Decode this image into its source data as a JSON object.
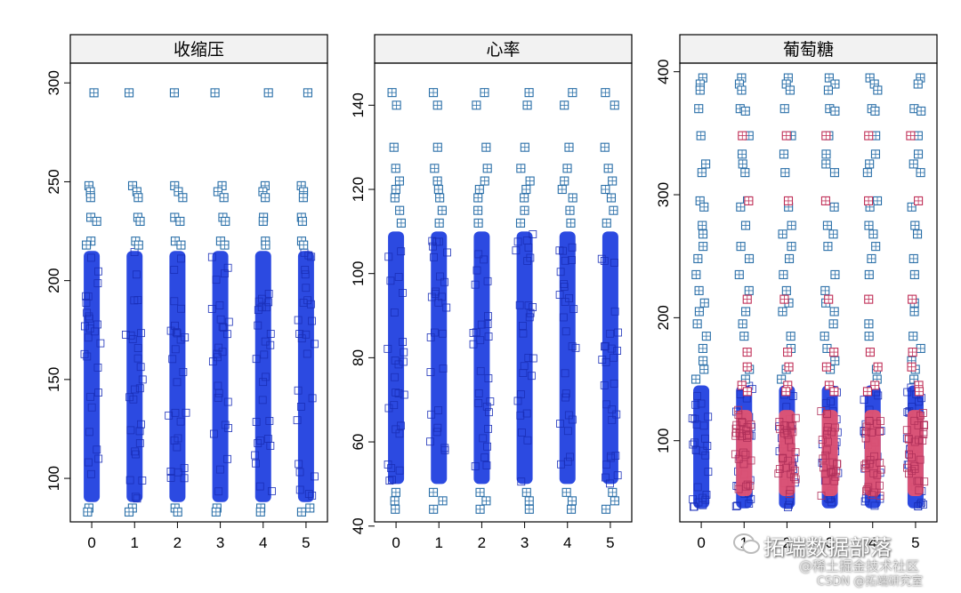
{
  "chart_data": [
    {
      "type": "scatter",
      "title": "收缩压",
      "xlabel": "",
      "ylabel": "",
      "categories": [
        "0",
        "1",
        "2",
        "3",
        "4",
        "5"
      ],
      "xlim": [
        -0.5,
        5.5
      ],
      "ylim": [
        78,
        310
      ],
      "yticks": [
        100,
        150,
        200,
        250,
        300
      ],
      "series": [
        {
          "color": "#2343e0",
          "dense_range": [
            88,
            215
          ],
          "outliers": [
            295,
            248,
            245,
            242,
            232,
            230,
            220,
            218,
            85,
            83
          ]
        }
      ],
      "grid": false,
      "legend": "none"
    },
    {
      "type": "scatter",
      "title": "心率",
      "xlabel": "",
      "ylabel": "",
      "categories": [
        "0",
        "1",
        "2",
        "3",
        "4",
        "5"
      ],
      "xlim": [
        -0.5,
        5.5
      ],
      "ylim": [
        41,
        150
      ],
      "yticks": [
        40,
        60,
        80,
        100,
        120,
        140
      ],
      "series": [
        {
          "color": "#2343e0",
          "dense_range": [
            50,
            110
          ],
          "outliers": [
            143,
            140,
            130,
            125,
            122,
            120,
            118,
            115,
            112,
            48,
            46,
            44
          ]
        }
      ],
      "grid": false,
      "legend": "none"
    },
    {
      "type": "scatter",
      "title": "葡萄糖",
      "xlabel": "",
      "ylabel": "",
      "categories": [
        "0",
        "1",
        "2",
        "3",
        "4",
        "5"
      ],
      "xlim": [
        -0.5,
        5.5
      ],
      "ylim": [
        34,
        407
      ],
      "yticks": [
        100,
        200,
        300,
        400
      ],
      "series": [
        {
          "color": "#2343e0",
          "dense_range": [
            45,
            145
          ],
          "outliers": [
            395,
            390,
            385,
            370,
            368,
            348,
            333,
            325,
            318,
            295,
            290,
            275,
            268,
            258,
            248,
            235,
            222,
            212,
            205,
            195,
            185,
            175,
            165,
            158,
            150
          ]
        },
        {
          "color": "#e8546e",
          "dense_range": [
            55,
            125
          ],
          "categories": [
            "1",
            "2",
            "3",
            "4",
            "5"
          ],
          "outliers": [
            348,
            295,
            215,
            172,
            160,
            145,
            140
          ]
        }
      ],
      "grid": false,
      "legend": "none"
    }
  ],
  "watermark": {
    "main": "拓端数据部落",
    "line1": "@稀土掘金技术社区",
    "line2": "CSDN @拓端研究室"
  }
}
